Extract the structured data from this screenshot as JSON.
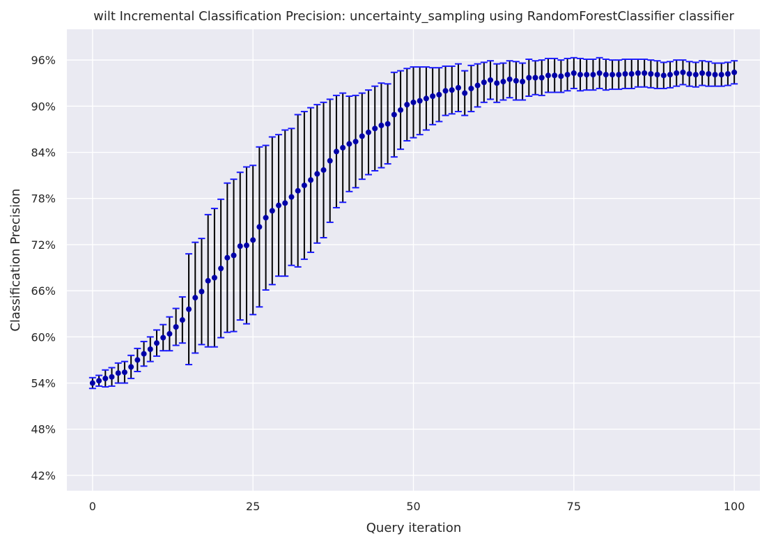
{
  "chart_data": {
    "type": "scatter",
    "title": "wilt Incremental Classification Precision: uncertainty_sampling using RandomForestClassifier classifier",
    "xlabel": "Query iteration",
    "ylabel": "Classification Precision",
    "xlim": [
      -4,
      104
    ],
    "ylim": [
      0.4,
      1.0
    ],
    "xticks": [
      0,
      25,
      50,
      75,
      100
    ],
    "yticks": [
      0.42,
      0.48,
      0.54,
      0.6,
      0.66,
      0.72,
      0.78,
      0.84,
      0.9,
      0.96
    ],
    "xtick_labels": [
      "0",
      "25",
      "50",
      "75",
      "100"
    ],
    "ytick_labels": [
      "42%",
      "48%",
      "54%",
      "60%",
      "66%",
      "72%",
      "78%",
      "84%",
      "90%",
      "96%"
    ],
    "grid": true,
    "colors": {
      "point": "#0000a8",
      "error_bar": "#000000",
      "cap": "#1a1aff",
      "background": "#eaeaf2"
    },
    "series": [
      {
        "x": [
          0,
          1,
          2,
          3,
          4,
          5,
          6,
          7,
          8,
          9,
          10,
          11,
          12,
          13,
          14,
          15,
          16,
          17,
          18,
          19,
          20,
          21,
          22,
          23,
          24,
          25,
          26,
          27,
          28,
          29,
          30,
          31,
          32,
          33,
          34,
          35,
          36,
          37,
          38,
          39,
          40,
          41,
          42,
          43,
          44,
          45,
          46,
          47,
          48,
          49,
          50,
          51,
          52,
          53,
          54,
          55,
          56,
          57,
          58,
          59,
          60,
          61,
          62,
          63,
          64,
          65,
          66,
          67,
          68,
          69,
          70,
          71,
          72,
          73,
          74,
          75,
          76,
          77,
          78,
          79,
          80,
          81,
          82,
          83,
          84,
          85,
          86,
          87,
          88,
          89,
          90,
          91,
          92,
          93,
          94,
          95,
          96,
          97,
          98,
          99,
          100
        ],
        "y": [
          0.54,
          0.543,
          0.546,
          0.548,
          0.553,
          0.554,
          0.561,
          0.57,
          0.578,
          0.584,
          0.592,
          0.599,
          0.604,
          0.613,
          0.622,
          0.636,
          0.651,
          0.659,
          0.673,
          0.677,
          0.689,
          0.703,
          0.706,
          0.718,
          0.719,
          0.726,
          0.743,
          0.755,
          0.764,
          0.771,
          0.774,
          0.782,
          0.79,
          0.797,
          0.804,
          0.812,
          0.817,
          0.829,
          0.841,
          0.846,
          0.851,
          0.854,
          0.861,
          0.866,
          0.871,
          0.875,
          0.877,
          0.889,
          0.895,
          0.902,
          0.905,
          0.907,
          0.91,
          0.913,
          0.915,
          0.92,
          0.921,
          0.924,
          0.917,
          0.923,
          0.927,
          0.931,
          0.934,
          0.93,
          0.932,
          0.935,
          0.933,
          0.932,
          0.937,
          0.937,
          0.937,
          0.94,
          0.94,
          0.939,
          0.941,
          0.943,
          0.941,
          0.941,
          0.941,
          0.943,
          0.941,
          0.941,
          0.941,
          0.942,
          0.942,
          0.943,
          0.943,
          0.942,
          0.941,
          0.94,
          0.941,
          0.943,
          0.944,
          0.942,
          0.941,
          0.943,
          0.942,
          0.941,
          0.941,
          0.942,
          0.944
        ],
        "yerr": [
          0.007,
          0.007,
          0.011,
          0.012,
          0.013,
          0.014,
          0.015,
          0.015,
          0.016,
          0.016,
          0.017,
          0.017,
          0.022,
          0.024,
          0.03,
          0.072,
          0.072,
          0.069,
          0.086,
          0.09,
          0.09,
          0.097,
          0.099,
          0.096,
          0.102,
          0.097,
          0.104,
          0.094,
          0.096,
          0.092,
          0.095,
          0.089,
          0.099,
          0.096,
          0.094,
          0.09,
          0.088,
          0.08,
          0.073,
          0.071,
          0.062,
          0.06,
          0.056,
          0.055,
          0.055,
          0.055,
          0.052,
          0.055,
          0.051,
          0.047,
          0.046,
          0.044,
          0.041,
          0.037,
          0.035,
          0.032,
          0.031,
          0.031,
          0.029,
          0.03,
          0.028,
          0.026,
          0.025,
          0.025,
          0.024,
          0.024,
          0.025,
          0.024,
          0.024,
          0.022,
          0.023,
          0.022,
          0.022,
          0.021,
          0.021,
          0.02,
          0.021,
          0.02,
          0.02,
          0.02,
          0.02,
          0.019,
          0.019,
          0.019,
          0.019,
          0.018,
          0.018,
          0.018,
          0.018,
          0.017,
          0.017,
          0.017,
          0.016,
          0.016,
          0.016,
          0.016,
          0.016,
          0.015,
          0.015,
          0.015,
          0.015
        ]
      }
    ]
  }
}
